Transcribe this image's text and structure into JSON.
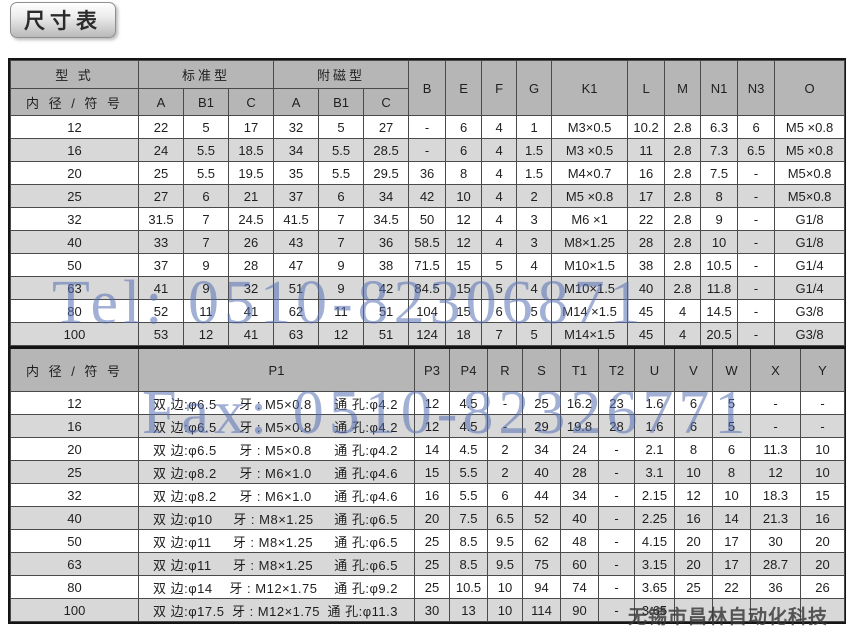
{
  "page": {
    "title": "尺寸表"
  },
  "watermarks": {
    "tel": "Tel: 0510-82306871",
    "fax": "Fax: 0510-82326771",
    "company": "无锡市昌林自动化科技"
  },
  "table1": {
    "header": {
      "col_type": "型 式",
      "col_bore": "内 径 / 符 号",
      "group_standard": "标准型",
      "group_magnet": "附磁型",
      "sub_cols": [
        "A",
        "B1",
        "C",
        "A",
        "B1",
        "C"
      ],
      "single_cols": [
        "B",
        "E",
        "F",
        "G",
        "K1",
        "L",
        "M",
        "N1",
        "N3",
        "O"
      ]
    },
    "rows": [
      {
        "bore": "12",
        "cells": [
          "22",
          "5",
          "17",
          "32",
          "5",
          "27",
          "-",
          "6",
          "4",
          "1",
          "M3×0.5",
          "10.2",
          "2.8",
          "6.3",
          "6",
          "M5 ×0.8"
        ]
      },
      {
        "bore": "16",
        "cells": [
          "24",
          "5.5",
          "18.5",
          "34",
          "5.5",
          "28.5",
          "-",
          "6",
          "4",
          "1.5",
          "M3 ×0.5",
          "11",
          "2.8",
          "7.3",
          "6.5",
          "M5 ×0.8"
        ]
      },
      {
        "bore": "20",
        "cells": [
          "25",
          "5.5",
          "19.5",
          "35",
          "5.5",
          "29.5",
          "36",
          "8",
          "4",
          "1.5",
          "M4×0.7",
          "16",
          "2.8",
          "7.5",
          "-",
          "M5×0.8"
        ]
      },
      {
        "bore": "25",
        "cells": [
          "27",
          "6",
          "21",
          "37",
          "6",
          "34",
          "42",
          "10",
          "4",
          "2",
          "M5 ×0.8",
          "17",
          "2.8",
          "8",
          "-",
          "M5×0.8"
        ]
      },
      {
        "bore": "32",
        "cells": [
          "31.5",
          "7",
          "24.5",
          "41.5",
          "7",
          "34.5",
          "50",
          "12",
          "4",
          "3",
          "M6 ×1",
          "22",
          "2.8",
          "9",
          "-",
          "G1/8"
        ]
      },
      {
        "bore": "40",
        "cells": [
          "33",
          "7",
          "26",
          "43",
          "7",
          "36",
          "58.5",
          "12",
          "4",
          "3",
          "M8×1.25",
          "28",
          "2.8",
          "10",
          "-",
          "G1/8"
        ]
      },
      {
        "bore": "50",
        "cells": [
          "37",
          "9",
          "28",
          "47",
          "9",
          "38",
          "71.5",
          "15",
          "5",
          "4",
          "M10×1.5",
          "38",
          "2.8",
          "10.5",
          "-",
          "G1/4"
        ]
      },
      {
        "bore": "63",
        "cells": [
          "41",
          "9",
          "32",
          "51",
          "9",
          "42",
          "84.5",
          "15",
          "5",
          "4",
          "M10×1.5",
          "40",
          "2.8",
          "11.8",
          "-",
          "G1/4"
        ]
      },
      {
        "bore": "80",
        "cells": [
          "52",
          "11",
          "41",
          "62",
          "11",
          "51",
          "104",
          "15",
          "6",
          "5",
          "M14 ×1.5",
          "45",
          "4",
          "14.5",
          "-",
          "G3/8"
        ]
      },
      {
        "bore": "100",
        "cells": [
          "53",
          "12",
          "41",
          "63",
          "12",
          "51",
          "124",
          "18",
          "7",
          "5",
          "M14×1.5",
          "45",
          "4",
          "20.5",
          "-",
          "G3/8"
        ]
      }
    ]
  },
  "table2": {
    "header": {
      "col_bore": "内 径 / 符 号",
      "p1": "P1",
      "cols": [
        "P3",
        "P4",
        "R",
        "S",
        "T1",
        "T2",
        "U",
        "V",
        "W",
        "X",
        "Y"
      ]
    },
    "rows": [
      {
        "bore": "12",
        "p1_side": "双 边:φ6.5",
        "p1_thread": "牙 : M5×0.8",
        "p1_hole": "通 孔:φ4.2",
        "cells": [
          "12",
          "4.5",
          "-",
          "25",
          "16.2",
          "23",
          "1.6",
          "6",
          "5",
          "-",
          "-"
        ]
      },
      {
        "bore": "16",
        "p1_side": "双 边:φ6.5",
        "p1_thread": "牙 : M5×0.8",
        "p1_hole": "通 孔:φ4.2",
        "cells": [
          "12",
          "4.5",
          "-",
          "29",
          "19.8",
          "28",
          "1.6",
          "6",
          "5",
          "-",
          "-"
        ]
      },
      {
        "bore": "20",
        "p1_side": "双 边:φ6.5",
        "p1_thread": "牙 : M5×0.8",
        "p1_hole": "通 孔:φ4.2",
        "cells": [
          "14",
          "4.5",
          "2",
          "34",
          "24",
          "-",
          "2.1",
          "8",
          "6",
          "11.3",
          "10"
        ]
      },
      {
        "bore": "25",
        "p1_side": "双 边:φ8.2",
        "p1_thread": "牙 : M6×1.0",
        "p1_hole": "通 孔:φ4.6",
        "cells": [
          "15",
          "5.5",
          "2",
          "40",
          "28",
          "-",
          "3.1",
          "10",
          "8",
          "12",
          "10"
        ]
      },
      {
        "bore": "32",
        "p1_side": "双 边:φ8.2",
        "p1_thread": "牙 : M6×1.0",
        "p1_hole": "通 孔:φ4.6",
        "cells": [
          "16",
          "5.5",
          "6",
          "44",
          "34",
          "-",
          "2.15",
          "12",
          "10",
          "18.3",
          "15"
        ]
      },
      {
        "bore": "40",
        "p1_side": "双 边:φ10",
        "p1_thread": "牙 : M8×1.25",
        "p1_hole": "通 孔:φ6.5",
        "cells": [
          "20",
          "7.5",
          "6.5",
          "52",
          "40",
          "-",
          "2.25",
          "16",
          "14",
          "21.3",
          "16"
        ]
      },
      {
        "bore": "50",
        "p1_side": "双 边:φ11",
        "p1_thread": "牙 : M8×1.25",
        "p1_hole": "通 孔:φ6.5",
        "cells": [
          "25",
          "8.5",
          "9.5",
          "62",
          "48",
          "-",
          "4.15",
          "20",
          "17",
          "30",
          "20"
        ]
      },
      {
        "bore": "63",
        "p1_side": "双 边:φ11",
        "p1_thread": "牙 : M8×1.25",
        "p1_hole": "通 孔:φ6.5",
        "cells": [
          "25",
          "8.5",
          "9.5",
          "75",
          "60",
          "-",
          "3.15",
          "20",
          "17",
          "28.7",
          "20"
        ]
      },
      {
        "bore": "80",
        "p1_side": "双 边:φ14",
        "p1_thread": "牙 : M12×1.75",
        "p1_hole": "通 孔:φ9.2",
        "cells": [
          "25",
          "10.5",
          "10",
          "94",
          "74",
          "-",
          "3.65",
          "25",
          "22",
          "36",
          "26"
        ]
      },
      {
        "bore": "100",
        "p1_side": "双 边:φ17.5",
        "p1_thread": "牙 : M12×1.75",
        "p1_hole": "通 孔:φ11.3",
        "cells": [
          "30",
          "13",
          "10",
          "114",
          "90",
          "-",
          "3.65",
          "",
          "",
          "",
          ""
        ]
      }
    ]
  },
  "colors": {
    "header_bg": "#b6b6b6",
    "stripe_bg": "#d8d8d8",
    "border": "#4a4a4a",
    "watermark_blue": "#5570b4",
    "watermark_gray": "#373737"
  }
}
